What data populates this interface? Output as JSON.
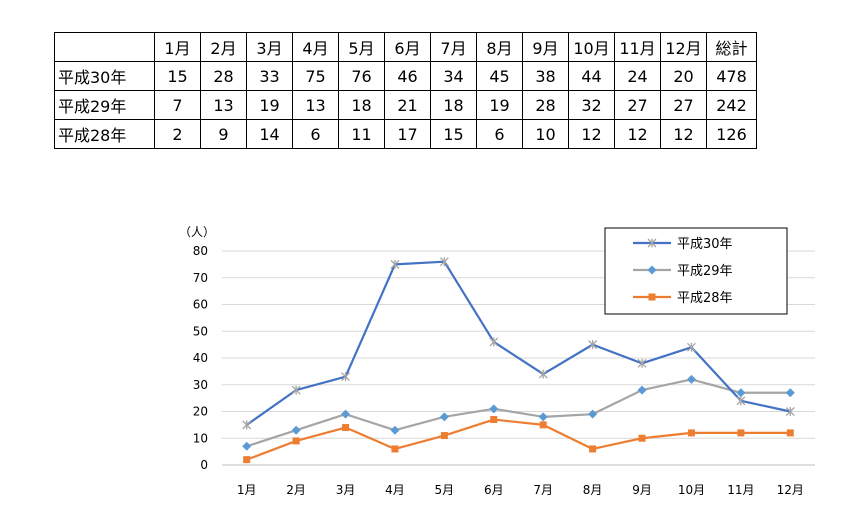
{
  "table": {
    "corner": "",
    "columns": [
      "1月",
      "2月",
      "3月",
      "4月",
      "5月",
      "6月",
      "7月",
      "8月",
      "9月",
      "10月",
      "11月",
      "12月",
      "総計"
    ],
    "rows": [
      {
        "label": "平成30年",
        "cells": [
          "15",
          "28",
          "33",
          "75",
          "76",
          "46",
          "34",
          "45",
          "38",
          "44",
          "24",
          "20",
          "478"
        ]
      },
      {
        "label": "平成29年",
        "cells": [
          "7",
          "13",
          "19",
          "13",
          "18",
          "21",
          "18",
          "19",
          "28",
          "32",
          "27",
          "27",
          "242"
        ]
      },
      {
        "label": "平成28年",
        "cells": [
          "2",
          "9",
          "14",
          "6",
          "11",
          "17",
          "15",
          "6",
          "10",
          "12",
          "12",
          "12",
          "126"
        ]
      }
    ]
  },
  "chart_data": {
    "type": "line",
    "title": "",
    "xlabel": "",
    "ylabel": "（人）",
    "ylim": [
      0,
      80
    ],
    "yticks": [
      0,
      10,
      20,
      30,
      40,
      50,
      60,
      70,
      80
    ],
    "grid": true,
    "legend_position": "top-right",
    "categories": [
      "1月",
      "2月",
      "3月",
      "4月",
      "5月",
      "6月",
      "7月",
      "8月",
      "9月",
      "10月",
      "11月",
      "12月"
    ],
    "series": [
      {
        "name": "平成30年",
        "values": [
          15,
          28,
          33,
          75,
          76,
          46,
          34,
          45,
          38,
          44,
          24,
          20
        ],
        "line_color": "#4472C4",
        "marker": "asterisk",
        "marker_color": "#A5A5A5"
      },
      {
        "name": "平成29年",
        "values": [
          7,
          13,
          19,
          13,
          18,
          21,
          18,
          19,
          28,
          32,
          27,
          27
        ],
        "line_color": "#A5A5A5",
        "marker": "diamond",
        "marker_color": "#5B9BD5"
      },
      {
        "name": "平成28年",
        "values": [
          2,
          9,
          14,
          6,
          11,
          17,
          15,
          6,
          10,
          12,
          12,
          12
        ],
        "line_color": "#ED7D31",
        "marker": "square",
        "marker_color": "#ED7D31"
      }
    ]
  }
}
